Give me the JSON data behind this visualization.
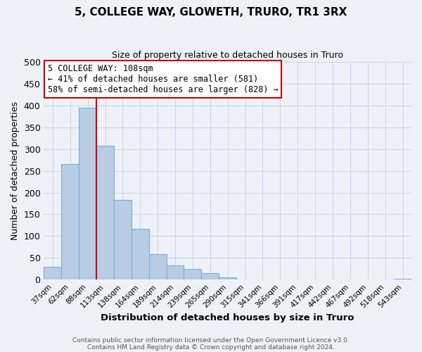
{
  "title": "5, COLLEGE WAY, GLOWETH, TRURO, TR1 3RX",
  "subtitle": "Size of property relative to detached houses in Truro",
  "xlabel": "Distribution of detached houses by size in Truro",
  "ylabel": "Number of detached properties",
  "bar_labels": [
    "37sqm",
    "62sqm",
    "88sqm",
    "113sqm",
    "138sqm",
    "164sqm",
    "189sqm",
    "214sqm",
    "239sqm",
    "265sqm",
    "290sqm",
    "315sqm",
    "341sqm",
    "366sqm",
    "391sqm",
    "417sqm",
    "442sqm",
    "467sqm",
    "492sqm",
    "518sqm",
    "543sqm"
  ],
  "bar_values": [
    30,
    265,
    395,
    308,
    183,
    117,
    58,
    32,
    25,
    15,
    6,
    0,
    0,
    0,
    0,
    0,
    0,
    0,
    0,
    0,
    2
  ],
  "bar_color": "#b8cce4",
  "bar_edge_color": "#7bafd4",
  "vline_x": 2.5,
  "vline_color": "#cc0000",
  "annotation_text": "5 COLLEGE WAY: 108sqm\n← 41% of detached houses are smaller (581)\n58% of semi-detached houses are larger (828) →",
  "annotation_box_color": "#ffffff",
  "annotation_box_edge": "#cc0000",
  "ylim": [
    0,
    500
  ],
  "yticks": [
    0,
    50,
    100,
    150,
    200,
    250,
    300,
    350,
    400,
    450,
    500
  ],
  "grid_color": "#ccd6e8",
  "background_color": "#eef2f8",
  "footer1": "Contains HM Land Registry data © Crown copyright and database right 2024.",
  "footer2": "Contains public sector information licensed under the Open Government Licence v3.0."
}
